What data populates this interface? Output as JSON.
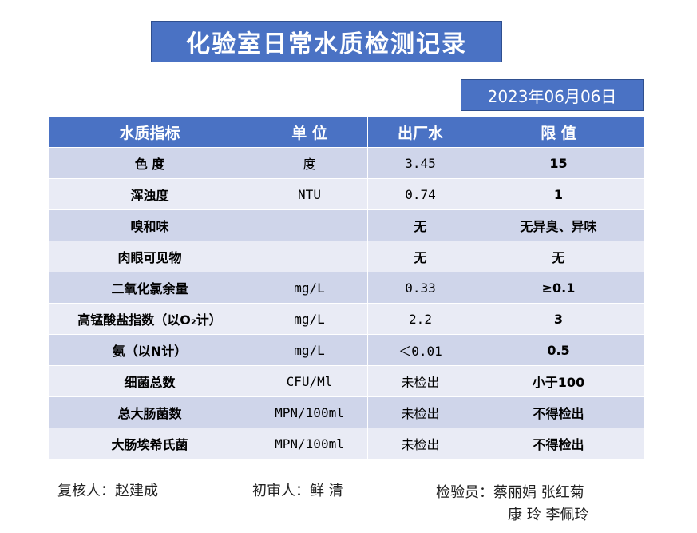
{
  "title": "化验室日常水质检测记录",
  "date": "2023年06月06日",
  "table": {
    "headers": [
      "水质指标",
      "单 位",
      "出厂水",
      "限 值"
    ],
    "rows": [
      {
        "indicator": "色 度",
        "unit": "度",
        "outlet": "3.45",
        "limit": "15"
      },
      {
        "indicator": "浑浊度",
        "unit": "NTU",
        "outlet": "0.74",
        "limit": "1"
      },
      {
        "indicator": "嗅和味",
        "unit": "",
        "outlet": "无",
        "limit": "无异臭、异味"
      },
      {
        "indicator": "肉眼可见物",
        "unit": "",
        "outlet": "无",
        "limit": "无"
      },
      {
        "indicator": "二氧化氯余量",
        "unit": "mg/L",
        "outlet": "0.33",
        "limit": "≥0.1"
      },
      {
        "indicator": "高锰酸盐指数（以O₂计）",
        "unit": "mg/L",
        "outlet": "2.2",
        "limit": "3"
      },
      {
        "indicator": "氨（以N计）",
        "unit": "mg/L",
        "outlet": "＜0.01",
        "limit": "0.5"
      },
      {
        "indicator": "细菌总数",
        "unit": "CFU/Ml",
        "outlet": "未检出",
        "limit": "小于100"
      },
      {
        "indicator": "总大肠菌数",
        "unit": "MPN/100ml",
        "outlet": "未检出",
        "limit": "不得检出"
      },
      {
        "indicator": "大肠埃希氏菌",
        "unit": "MPN/100ml",
        "outlet": "未检出",
        "limit": "不得检出"
      }
    ]
  },
  "footer": {
    "reviewer": "复核人：赵建成",
    "first_reviewer": "初审人：鲜  清",
    "inspectors_line1": "检验员：蔡丽娟  张红菊",
    "inspectors_line2": "康  玲  李佩玲"
  },
  "colors": {
    "header_blue": "#4a72c4",
    "row_dark": "#cfd5ea",
    "row_light": "#e9ebf5"
  }
}
